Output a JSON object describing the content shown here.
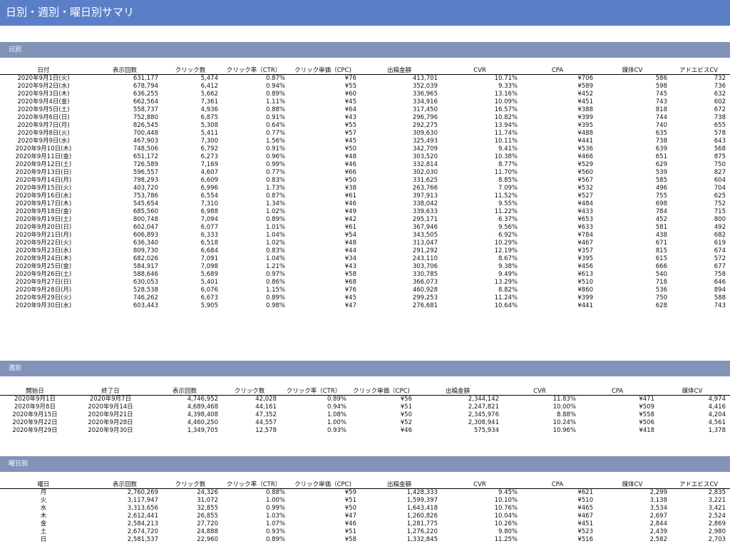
{
  "page_title": "日別・週別・曜日別サマリ",
  "daily": {
    "title": "日別",
    "headers": [
      "日付",
      "表示回数",
      "クリック数",
      "クリック率（CTR）",
      "クリック単価（CPC)",
      "出稿金額",
      "CVR",
      "CPA",
      "媒体CV",
      "アドエビスCV"
    ],
    "rows": [
      [
        "2020年9月1日(火)",
        "631,177",
        "5,474",
        "0.87%",
        "¥76",
        "413,701",
        "10.71%",
        "¥706",
        "586",
        "732"
      ],
      [
        "2020年9月2日(水)",
        "678,794",
        "6,412",
        "0.94%",
        "¥55",
        "352,039",
        "9.33%",
        "¥589",
        "598",
        "736"
      ],
      [
        "2020年9月3日(木)",
        "636,255",
        "5,662",
        "0.89%",
        "¥60",
        "336,965",
        "13.16%",
        "¥452",
        "745",
        "632"
      ],
      [
        "2020年9月4日(金)",
        "662,564",
        "7,361",
        "1.11%",
        "¥45",
        "334,916",
        "10.09%",
        "¥451",
        "743",
        "602"
      ],
      [
        "2020年9月5日(土)",
        "558,737",
        "4,936",
        "0.88%",
        "¥64",
        "317,450",
        "16.57%",
        "¥388",
        "818",
        "672"
      ],
      [
        "2020年9月6日(日)",
        "752,880",
        "6,875",
        "0.91%",
        "¥43",
        "296,796",
        "10.82%",
        "¥399",
        "744",
        "738"
      ],
      [
        "2020年9月7日(月)",
        "826,545",
        "5,308",
        "0.64%",
        "¥55",
        "292,275",
        "13.94%",
        "¥395",
        "740",
        "655"
      ],
      [
        "2020年9月8日(火)",
        "700,448",
        "5,411",
        "0.77%",
        "¥57",
        "309,630",
        "11.74%",
        "¥488",
        "635",
        "578"
      ],
      [
        "2020年9月9日(水)",
        "467,903",
        "7,300",
        "1.56%",
        "¥45",
        "325,493",
        "10.11%",
        "¥441",
        "738",
        "643"
      ],
      [
        "2020年9月10日(木)",
        "748,506",
        "6,792",
        "0.91%",
        "¥50",
        "342,709",
        "9.41%",
        "¥536",
        "639",
        "568"
      ],
      [
        "2020年9月11日(金)",
        "651,172",
        "6,273",
        "0.96%",
        "¥48",
        "303,520",
        "10.38%",
        "¥466",
        "651",
        "875"
      ],
      [
        "2020年9月12日(土)",
        "726,589",
        "7,169",
        "0.99%",
        "¥46",
        "332,814",
        "8.77%",
        "¥529",
        "629",
        "750"
      ],
      [
        "2020年9月13日(日)",
        "596,557",
        "4,607",
        "0.77%",
        "¥66",
        "302,030",
        "11.70%",
        "¥560",
        "539",
        "827"
      ],
      [
        "2020年9月14日(月)",
        "798,293",
        "6,609",
        "0.83%",
        "¥50",
        "331,625",
        "8.85%",
        "¥567",
        "585",
        "604"
      ],
      [
        "2020年9月15日(火)",
        "403,720",
        "6,996",
        "1.73%",
        "¥38",
        "263,766",
        "7.09%",
        "¥532",
        "496",
        "704"
      ],
      [
        "2020年9月16日(水)",
        "753,786",
        "6,554",
        "0.87%",
        "¥61",
        "397,913",
        "11.52%",
        "¥527",
        "755",
        "625"
      ],
      [
        "2020年9月17日(木)",
        "545,654",
        "7,310",
        "1.34%",
        "¥46",
        "338,042",
        "9.55%",
        "¥484",
        "698",
        "752"
      ],
      [
        "2020年9月18日(金)",
        "685,560",
        "6,988",
        "1.02%",
        "¥49",
        "339,633",
        "11.22%",
        "¥433",
        "784",
        "715"
      ],
      [
        "2020年9月19日(土)",
        "800,748",
        "7,094",
        "0.89%",
        "¥42",
        "295,171",
        "6.37%",
        "¥653",
        "452",
        "800"
      ],
      [
        "2020年9月20日(日)",
        "602,047",
        "6,077",
        "1.01%",
        "¥61",
        "367,946",
        "9.56%",
        "¥633",
        "581",
        "492"
      ],
      [
        "2020年9月21日(月)",
        "606,893",
        "6,333",
        "1.04%",
        "¥54",
        "343,505",
        "6.92%",
        "¥784",
        "438",
        "682"
      ],
      [
        "2020年9月22日(火)",
        "636,340",
        "6,518",
        "1.02%",
        "¥48",
        "313,047",
        "10.29%",
        "¥467",
        "671",
        "619"
      ],
      [
        "2020年9月23日(水)",
        "809,730",
        "6,684",
        "0.83%",
        "¥44",
        "291,292",
        "12.19%",
        "¥357",
        "815",
        "674"
      ],
      [
        "2020年9月24日(木)",
        "682,026",
        "7,091",
        "1.04%",
        "¥34",
        "243,110",
        "8.67%",
        "¥395",
        "615",
        "572"
      ],
      [
        "2020年9月25日(金)",
        "584,917",
        "7,098",
        "1.21%",
        "¥43",
        "303,706",
        "9.38%",
        "¥456",
        "666",
        "677"
      ],
      [
        "2020年9月26日(土)",
        "588,646",
        "5,689",
        "0.97%",
        "¥58",
        "330,785",
        "9.49%",
        "¥613",
        "540",
        "758"
      ],
      [
        "2020年9月27日(日)",
        "630,053",
        "5,401",
        "0.86%",
        "¥68",
        "366,073",
        "13.29%",
        "¥510",
        "718",
        "646"
      ],
      [
        "2020年9月28日(月)",
        "528,538",
        "6,076",
        "1.15%",
        "¥76",
        "460,928",
        "8.82%",
        "¥860",
        "536",
        "894"
      ],
      [
        "2020年9月29日(火)",
        "746,262",
        "6,673",
        "0.89%",
        "¥45",
        "299,253",
        "11.24%",
        "¥399",
        "750",
        "588"
      ],
      [
        "2020年9月30日(水)",
        "603,443",
        "5,905",
        "0.98%",
        "¥47",
        "276,681",
        "10.64%",
        "¥441",
        "628",
        "743"
      ]
    ]
  },
  "weekly": {
    "title": "週別",
    "headers": [
      "開始日",
      "終了日",
      "表示回数",
      "クリック数",
      "クリック率（CTR）",
      "クリック単価（CPC)",
      "出稿金額",
      "CVR",
      "CPA",
      "媒体CV"
    ],
    "rows": [
      [
        "2020年9月1日",
        "2020年9月7日",
        "4,746,952",
        "42,028",
        "0.89%",
        "¥56",
        "2,344,142",
        "11.83%",
        "¥471",
        "4,974"
      ],
      [
        "2020年9月8日",
        "2020年9月14日",
        "4,689,468",
        "44,161",
        "0.94%",
        "¥51",
        "2,247,821",
        "10.00%",
        "¥509",
        "4,416"
      ],
      [
        "2020年9月15日",
        "2020年9月21日",
        "4,398,408",
        "47,352",
        "1.08%",
        "¥50",
        "2,345,976",
        "8.88%",
        "¥558",
        "4,204"
      ],
      [
        "2020年9月22日",
        "2020年9月28日",
        "4,460,250",
        "44,557",
        "1.00%",
        "¥52",
        "2,308,941",
        "10.24%",
        "¥506",
        "4,561"
      ],
      [
        "2020年9月29日",
        "2020年9月30日",
        "1,349,705",
        "12,578",
        "0.93%",
        "¥46",
        "575,934",
        "10.96%",
        "¥418",
        "1,378"
      ]
    ]
  },
  "weekday": {
    "title": "曜日別",
    "headers": [
      "曜日",
      "表示回数",
      "クリック数",
      "クリック率（CTR）",
      "クリック単価（CPC)",
      "出稿金額",
      "CVR",
      "CPA",
      "媒体CV",
      "アドエビスCV"
    ],
    "rows": [
      [
        "月",
        "2,760,269",
        "24,326",
        "0.88%",
        "¥59",
        "1,428,333",
        "9.45%",
        "¥621",
        "2,299",
        "2,835"
      ],
      [
        "火",
        "3,117,947",
        "31,072",
        "1.00%",
        "¥51",
        "1,599,397",
        "10.10%",
        "¥510",
        "3,138",
        "3,221"
      ],
      [
        "水",
        "3,313,656",
        "32,855",
        "0.99%",
        "¥50",
        "1,643,418",
        "10.76%",
        "¥465",
        "3,534",
        "3,421"
      ],
      [
        "木",
        "2,612,441",
        "26,855",
        "1.03%",
        "¥47",
        "1,260,826",
        "10.04%",
        "¥467",
        "2,697",
        "2,524"
      ],
      [
        "金",
        "2,584,213",
        "27,720",
        "1.07%",
        "¥46",
        "1,281,775",
        "10.26%",
        "¥451",
        "2,844",
        "2,869"
      ],
      [
        "土",
        "2,674,720",
        "24,888",
        "0.93%",
        "¥51",
        "1,276,220",
        "9.80%",
        "¥523",
        "2,439",
        "2,980"
      ],
      [
        "日",
        "2,581,537",
        "22,960",
        "0.89%",
        "¥58",
        "1,332,845",
        "11.25%",
        "¥516",
        "2,582",
        "2,703"
      ]
    ]
  }
}
